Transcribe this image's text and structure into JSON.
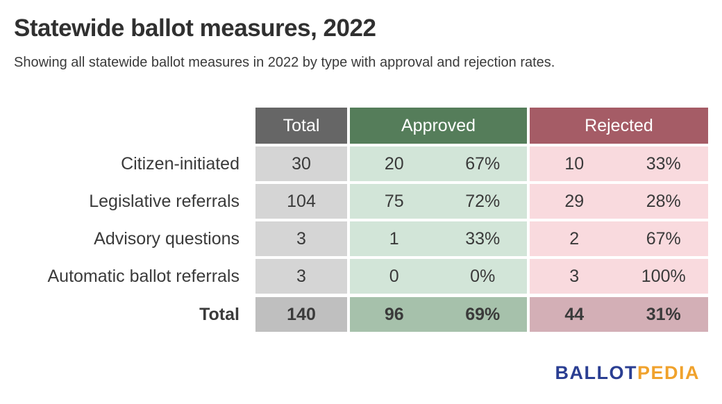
{
  "title": "Statewide ballot measures, 2022",
  "subtitle": "Showing all statewide ballot measures in 2022 by type with approval and rejection rates.",
  "table": {
    "headers": {
      "total": "Total",
      "approved": "Approved",
      "rejected": "Rejected"
    },
    "rows": [
      {
        "label": "Citizen-initiated",
        "total": "30",
        "approved": "20",
        "approved_pct": "67%",
        "rejected": "10",
        "rejected_pct": "33%"
      },
      {
        "label": "Legislative referrals",
        "total": "104",
        "approved": "75",
        "approved_pct": "72%",
        "rejected": "29",
        "rejected_pct": "28%"
      },
      {
        "label": "Advisory questions",
        "total": "3",
        "approved": "1",
        "approved_pct": "33%",
        "rejected": "2",
        "rejected_pct": "67%"
      },
      {
        "label": "Automatic ballot referrals",
        "total": "3",
        "approved": "0",
        "approved_pct": "0%",
        "rejected": "3",
        "rejected_pct": "100%"
      }
    ],
    "total_row": {
      "label": "Total",
      "total": "140",
      "approved": "96",
      "approved_pct": "69%",
      "rejected": "44",
      "rejected_pct": "31%"
    }
  },
  "logo": {
    "part1": "BALLOT",
    "part2": "PEDIA"
  },
  "colors": {
    "text": "#3a3a3a",
    "text-dark": "#303030",
    "header-gray": "#666666",
    "header-green": "#557d5a",
    "header-rose": "#a55c66",
    "cell-gray": "#d5d5d5",
    "cell-green": "#d2e5d8",
    "cell-pink": "#f9dade",
    "total-gray": "#bfbfbf",
    "total-green": "#a6c1ab",
    "total-pink": "#d3afb6",
    "logo-blue": "#2a3e92",
    "logo-orange": "#f0a22c"
  },
  "chart_data": {
    "type": "table",
    "title": "Statewide ballot measures, 2022",
    "subtitle": "Showing all statewide ballot measures in 2022 by type with approval and rejection rates.",
    "columns": [
      "Type",
      "Total",
      "Approved count",
      "Approved %",
      "Rejected count",
      "Rejected %"
    ],
    "rows": [
      [
        "Citizen-initiated",
        30,
        20,
        "67%",
        10,
        "33%"
      ],
      [
        "Legislative referrals",
        104,
        75,
        "72%",
        29,
        "28%"
      ],
      [
        "Advisory questions",
        3,
        1,
        "33%",
        2,
        "67%"
      ],
      [
        "Automatic ballot referrals",
        3,
        0,
        "0%",
        3,
        "100%"
      ],
      [
        "Total",
        140,
        96,
        "69%",
        44,
        "31%"
      ]
    ],
    "legend_position": "none",
    "grid": false
  }
}
